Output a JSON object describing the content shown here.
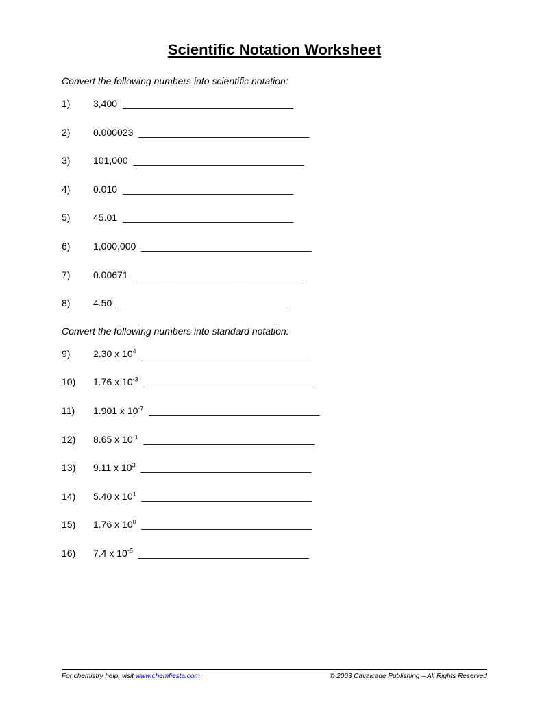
{
  "title": "Scientific Notation Worksheet",
  "section1": {
    "instruction": "Convert the following numbers into scientific notation:",
    "problems": [
      {
        "n": "1)",
        "value": "3,400"
      },
      {
        "n": "2)",
        "value": "0.000023"
      },
      {
        "n": "3)",
        "value": "101,000"
      },
      {
        "n": "4)",
        "value": "0.010"
      },
      {
        "n": "5)",
        "value": "45.01"
      },
      {
        "n": "6)",
        "value": "1,000,000"
      },
      {
        "n": "7)",
        "value": "0.00671"
      },
      {
        "n": "8)",
        "value": "4.50"
      }
    ]
  },
  "section2": {
    "instruction": "Convert the following numbers into standard notation:",
    "problems": [
      {
        "n": "9)",
        "coef": "2.30",
        "exp": "4"
      },
      {
        "n": "10)",
        "coef": "1.76",
        "exp": "-3"
      },
      {
        "n": "11)",
        "coef": "1.901",
        "exp": "-7"
      },
      {
        "n": "12)",
        "coef": "8.65",
        "exp": "-1"
      },
      {
        "n": "13)",
        "coef": "9.11",
        "exp": "3"
      },
      {
        "n": "14)",
        "coef": "5.40",
        "exp": "1"
      },
      {
        "n": "15)",
        "coef": "1.76",
        "exp": "0"
      },
      {
        "n": "16)",
        "coef": "7.4",
        "exp": "-5"
      }
    ]
  },
  "blank_line": "________________________________",
  "footer": {
    "help_prefix": "For chemistry help, visit ",
    "help_url": "www.chemfiesta.com",
    "copyright": "© 2003 Cavalcade Publishing – All Rights Reserved"
  }
}
